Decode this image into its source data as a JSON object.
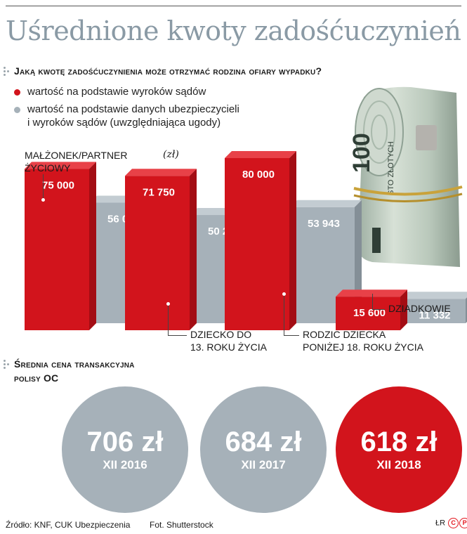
{
  "title": "Uśrednione kwoty zadośćuczynień",
  "question": "Jaką kwotę zadośćuczynienia może otrzymać rodzina ofiary wypadku?",
  "legend": {
    "red": "wartość na podstawie wyroków sądów",
    "grey_line1": "wartość na podstawie danych ubezpieczycieli",
    "grey_line2": "i wyroków sądów (uwzględniająca ugody)"
  },
  "unit": "(zł)",
  "colors": {
    "red": "#d2141c",
    "grey": "#a6b1b9",
    "title": "#8a9aa5"
  },
  "photo_icon": "banknote-roll-100-zloty",
  "chart_data": {
    "type": "bar",
    "categories": [
      "MAŁŻONEK/PARTNER ŻYCIOWY",
      "DZIECKO DO 13. ROKU ŻYCIA",
      "RODZIC DZIECKA PONIŻEJ 18. ROKU ŻYCIA",
      "DZIADKOWIE"
    ],
    "series": [
      {
        "name": "wartość na podstawie wyroków sądów",
        "color": "red",
        "values": [
          75000,
          71750,
          80000,
          15600
        ],
        "labels": [
          "75 000",
          "71 750",
          "80 000",
          "15 600"
        ]
      },
      {
        "name": "wartość na podstawie danych ubezpieczycieli i wyroków sądów (uwzględniająca ugody)",
        "color": "grey",
        "values": [
          56000,
          50279,
          53943,
          11332
        ],
        "labels": [
          "56 000",
          "50 279",
          "53 943",
          "11 332"
        ]
      }
    ],
    "ylabel": "(zł)",
    "ylim": [
      0,
      80000
    ],
    "grid": false
  },
  "categories_text": {
    "c0_l1": "MAŁŻONEK/PARTNER",
    "c0_l2": "ŻYCIOWY",
    "c1_l1": "DZIECKO DO",
    "c1_l2": "13. ROKU ŻYCIA",
    "c2_l1": "RODZIC DZIECKA",
    "c2_l2": "PONIŻEJ 18. ROKU ŻYCIA",
    "c3_l1": "DZIADKOWIE"
  },
  "policy": {
    "heading_line1": "Średnia cena transakcyjna",
    "heading_line2": "polisy OC",
    "items": [
      {
        "amount": "706 zł",
        "date": "XII 2016",
        "color": "grey"
      },
      {
        "amount": "684 zł",
        "date": "XII 2017",
        "color": "grey"
      },
      {
        "amount": "618 zł",
        "date": "XII 2018",
        "color": "red"
      }
    ]
  },
  "footer": {
    "source": "Źródło: KNF, CUK Ubezpieczenia",
    "photo": "Fot. Shutterstock",
    "initials": "ŁR",
    "logo": "P"
  }
}
